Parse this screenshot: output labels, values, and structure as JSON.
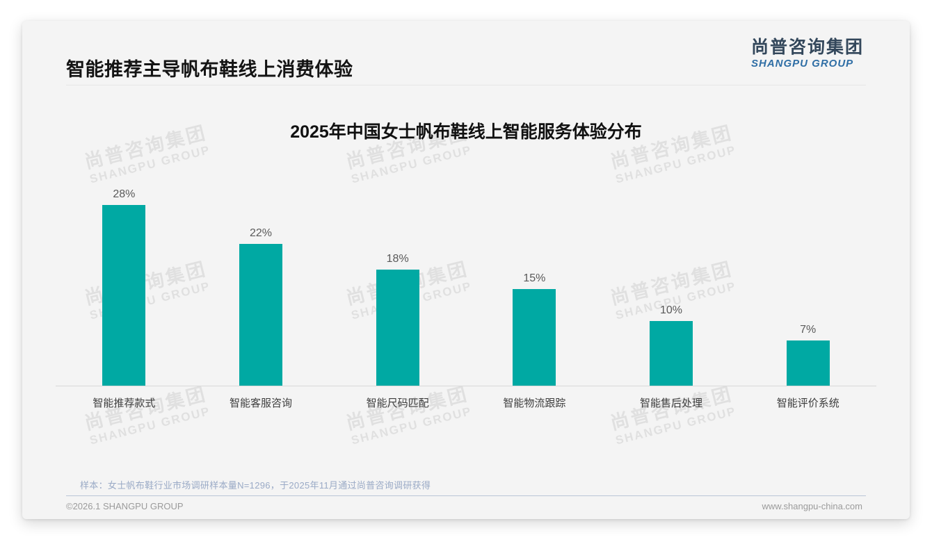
{
  "page": {
    "title": "智能推荐主导帆布鞋线上消费体验",
    "logo": {
      "cn": "尚普咨询集团",
      "en": "SHANGPU GROUP"
    },
    "watermark": {
      "cn": "尚普咨询集团",
      "en": "SHANGPU GROUP"
    },
    "sample_note": "样本：女士帆布鞋行业市场调研样本量N=1296，于2025年11月通过尚普咨询调研获得",
    "footer": {
      "copyright": "©2026.1 SHANGPU GROUP",
      "website": "www.shangpu-china.com"
    }
  },
  "colors": {
    "bar_teal": "#00a9a3",
    "logo_navy": "#33475b",
    "logo_blue": "#2f6ea5",
    "note_blue": "#9aaac6"
  },
  "chart_data": {
    "type": "bar",
    "title": "2025年中国女士帆布鞋线上智能服务体验分布",
    "categories": [
      "智能推荐款式",
      "智能客服咨询",
      "智能尺码匹配",
      "智能物流跟踪",
      "智能售后处理",
      "智能评价系统"
    ],
    "values": [
      28,
      22,
      18,
      15,
      10,
      7
    ],
    "value_labels": [
      "28%",
      "22%",
      "18%",
      "15%",
      "10%",
      "7%"
    ],
    "unit": "%",
    "xlabel": "",
    "ylabel": "",
    "ylim": [
      0,
      30
    ],
    "grid": false,
    "legend": false,
    "bar_color": "#00a9a3"
  }
}
